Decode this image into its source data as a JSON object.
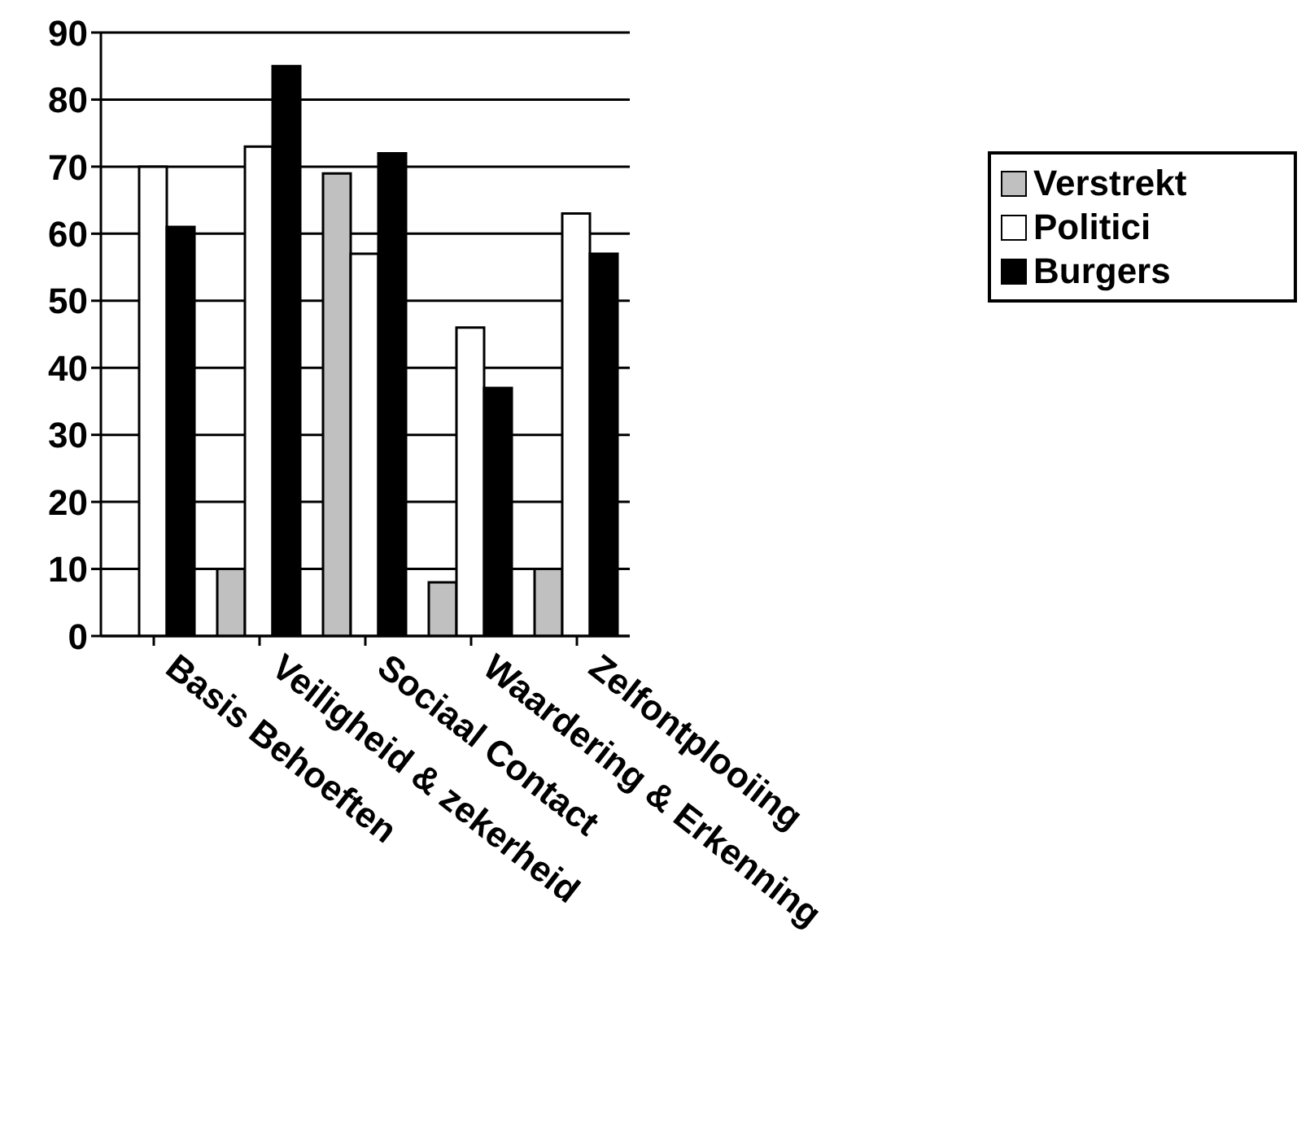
{
  "chart_data": {
    "type": "bar",
    "categories": [
      "Basis Behoeften",
      "Veiligheid & zekerheid",
      "Sociaal Contact",
      "Waardering & Erkenning",
      "Zelfontplooiing"
    ],
    "series": [
      {
        "name": "Verstrekt",
        "color": "#c0c0c0",
        "values": [
          0,
          10,
          69,
          8,
          10
        ]
      },
      {
        "name": "Politici",
        "color": "#ffffff",
        "values": [
          70,
          73,
          57,
          46,
          63
        ]
      },
      {
        "name": "Burgers",
        "color": "#000000",
        "values": [
          61,
          85,
          72,
          37,
          57
        ]
      }
    ],
    "ylim": [
      0,
      90
    ],
    "yticks": [
      0,
      10,
      20,
      30,
      40,
      50,
      60,
      70,
      80,
      90
    ],
    "grid": "y",
    "legend": "right"
  }
}
